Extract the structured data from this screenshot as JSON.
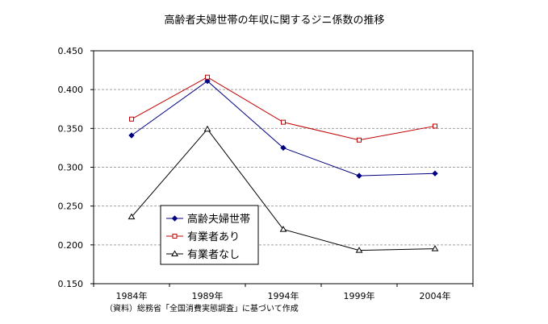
{
  "chart_data": {
    "type": "line",
    "title": "高齢者夫婦世帯の年収に関するジニ係数の推移",
    "categories": [
      "1984年",
      "1989年",
      "1994年",
      "1999年",
      "2004年"
    ],
    "y_ticks": [
      "0.450",
      "0.400",
      "0.350",
      "0.300",
      "0.250",
      "0.200",
      "0.150"
    ],
    "ylim": [
      0.15,
      0.45
    ],
    "grid": true,
    "legend_position": "lower-left",
    "source_note": "（資料）総務省「全国消費実態調査」に基づいて作成",
    "series": [
      {
        "name": "高齢夫婦世帯",
        "marker": "diamond-filled",
        "color": "#000080",
        "values": [
          0.341,
          0.411,
          0.325,
          0.289,
          0.292
        ]
      },
      {
        "name": "有業者あり",
        "marker": "square-open",
        "color": "#c00000",
        "values": [
          0.362,
          0.416,
          0.358,
          0.335,
          0.353
        ]
      },
      {
        "name": "有業者なし",
        "marker": "triangle-open",
        "color": "#000000",
        "values": [
          0.236,
          0.349,
          0.22,
          0.193,
          0.195
        ]
      }
    ]
  }
}
